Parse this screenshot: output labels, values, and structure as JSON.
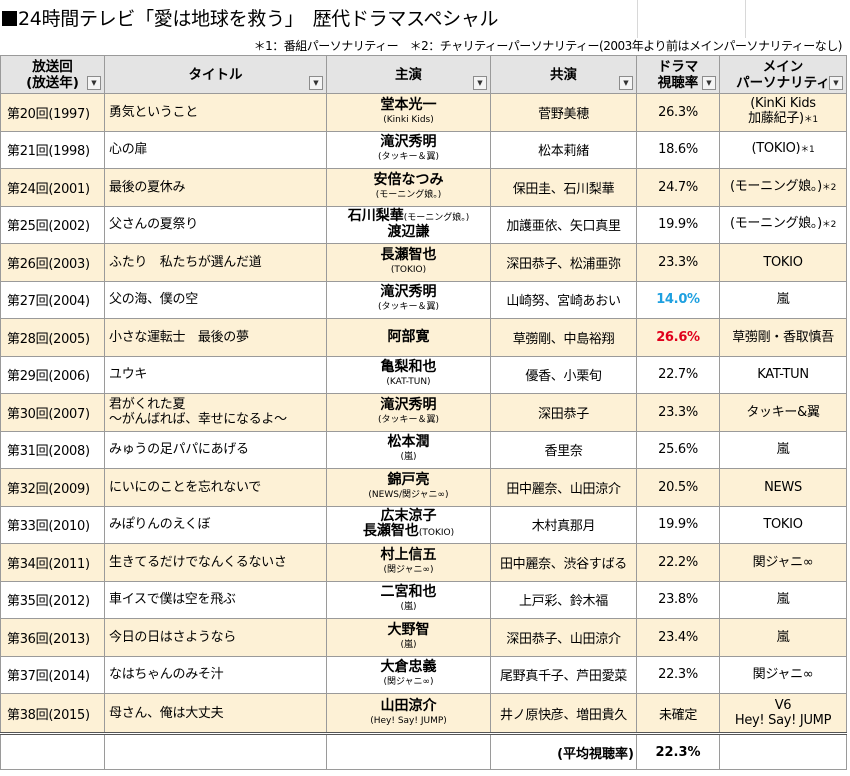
{
  "title": "24時間テレビ「愛は地球を救う」　歴代ドラマスペシャル",
  "note": "＊1：番組パーソナリティー　＊2：チャリティーパーソナリティー(2003年より前はメインパーソナリティーなし)",
  "headers": {
    "episode_l1": "放送回",
    "episode_l2": "(放送年)",
    "title": "タイトル",
    "star": "主演",
    "cast": "共演",
    "rating_l1": "ドラマ",
    "rating_l2": "視聴率",
    "pers_l1": "メイン",
    "pers_l2": "パーソナリティ"
  },
  "filter_glyph": "▼",
  "rows": [
    {
      "ep": "第20回(1997)",
      "title": "勇気ということ",
      "title2": "",
      "star": "堂本光一",
      "star_sub": "(Kinki Kids)",
      "star2": "",
      "star2_sub": "",
      "cast": "菅野美穂",
      "rating": "26.3%",
      "rating_style": "",
      "pers": "(KinKi Kids",
      "pers2": "加藤紀子)",
      "mark": "＊1"
    },
    {
      "ep": "第21回(1998)",
      "title": "心の扉",
      "title2": "",
      "star": "滝沢秀明",
      "star_sub": "(タッキー＆翼)",
      "star2": "",
      "star2_sub": "",
      "cast": "松本莉緒",
      "rating": "18.6%",
      "rating_style": "",
      "pers": "(TOKIO)",
      "pers2": "",
      "mark": "＊1"
    },
    {
      "ep": "第24回(2001)",
      "title": "最後の夏休み",
      "title2": "",
      "star": "安倍なつみ",
      "star_sub": "(モーニング娘。)",
      "star2": "",
      "star2_sub": "",
      "cast": "保田圭、石川梨華",
      "rating": "24.7%",
      "rating_style": "",
      "pers": "(モーニング娘。)",
      "pers2": "",
      "mark": "＊2"
    },
    {
      "ep": "第25回(2002)",
      "title": "父さんの夏祭り",
      "title2": "",
      "star": "石川梨華",
      "star_sub": "(モーニング娘。)",
      "star2": "渡辺謙",
      "star2_sub": "",
      "cast": "加護亜依、矢口真里",
      "rating": "19.9%",
      "rating_style": "",
      "pers": "(モーニング娘。)",
      "pers2": "",
      "mark": "＊2"
    },
    {
      "ep": "第26回(2003)",
      "title": "ふたり　私たちが選んだ道",
      "title2": "",
      "star": "長瀬智也",
      "star_sub": "(TOKIO)",
      "star2": "",
      "star2_sub": "",
      "cast": "深田恭子、松浦亜弥",
      "rating": "23.3%",
      "rating_style": "",
      "pers": "TOKIO",
      "pers2": "",
      "mark": ""
    },
    {
      "ep": "第27回(2004)",
      "title": "父の海、僕の空",
      "title2": "",
      "star": "滝沢秀明",
      "star_sub": "(タッキー＆翼)",
      "star2": "",
      "star2_sub": "",
      "cast": "山崎努、宮崎あおい",
      "rating": "14.0%",
      "rating_style": "blue",
      "pers": "嵐",
      "pers2": "",
      "mark": ""
    },
    {
      "ep": "第28回(2005)",
      "title": "小さな運転士　最後の夢",
      "title2": "",
      "star": "阿部寛",
      "star_sub": "",
      "star2": "",
      "star2_sub": "",
      "cast": "草彅剛、中島裕翔",
      "rating": "26.6%",
      "rating_style": "red",
      "pers": "草彅剛・香取慎吾",
      "pers2": "",
      "mark": ""
    },
    {
      "ep": "第29回(2006)",
      "title": "ユウキ",
      "title2": "",
      "star": "亀梨和也",
      "star_sub": "(KAT-TUN)",
      "star2": "",
      "star2_sub": "",
      "cast": "優香、小栗旬",
      "rating": "22.7%",
      "rating_style": "",
      "pers": "KAT-TUN",
      "pers2": "",
      "mark": ""
    },
    {
      "ep": "第30回(2007)",
      "title": "君がくれた夏",
      "title2": "～がんばれば、幸せになるよ～",
      "star": "滝沢秀明",
      "star_sub": "(タッキー＆翼)",
      "star2": "",
      "star2_sub": "",
      "cast": "深田恭子",
      "rating": "23.3%",
      "rating_style": "",
      "pers": "タッキー&翼",
      "pers2": "",
      "mark": ""
    },
    {
      "ep": "第31回(2008)",
      "title": "みゅうの足パパにあげる",
      "title2": "",
      "star": "松本潤",
      "star_sub": "(嵐)",
      "star2": "",
      "star2_sub": "",
      "cast": "香里奈",
      "rating": "25.6%",
      "rating_style": "",
      "pers": "嵐",
      "pers2": "",
      "mark": ""
    },
    {
      "ep": "第32回(2009)",
      "title": "にいにのことを忘れないで",
      "title2": "",
      "star": "錦戸亮",
      "star_sub": "(NEWS/関ジャニ∞)",
      "star2": "",
      "star2_sub": "",
      "cast": "田中麗奈、山田涼介",
      "rating": "20.5%",
      "rating_style": "",
      "pers": "NEWS",
      "pers2": "",
      "mark": ""
    },
    {
      "ep": "第33回(2010)",
      "title": "みぽりんのえくぼ",
      "title2": "",
      "star": "広末涼子",
      "star_sub": "",
      "star2": "長瀬智也",
      "star2_sub": "(TOKIO)",
      "cast": "木村真那月",
      "rating": "19.9%",
      "rating_style": "",
      "pers": "TOKIO",
      "pers2": "",
      "mark": ""
    },
    {
      "ep": "第34回(2011)",
      "title": "生きてるだけでなんくるないさ",
      "title2": "",
      "star": "村上信五",
      "star_sub": "(関ジャニ∞)",
      "star2": "",
      "star2_sub": "",
      "cast": "田中麗奈、渋谷すばる",
      "rating": "22.2%",
      "rating_style": "",
      "pers": "関ジャニ∞",
      "pers2": "",
      "mark": ""
    },
    {
      "ep": "第35回(2012)",
      "title": "車イスで僕は空を飛ぶ",
      "title2": "",
      "star": "二宮和也",
      "star_sub": "(嵐)",
      "star2": "",
      "star2_sub": "",
      "cast": "上戸彩、鈴木福",
      "rating": "23.8%",
      "rating_style": "",
      "pers": "嵐",
      "pers2": "",
      "mark": ""
    },
    {
      "ep": "第36回(2013)",
      "title": "今日の日はさようなら",
      "title2": "",
      "star": "大野智",
      "star_sub": "(嵐)",
      "star2": "",
      "star2_sub": "",
      "cast": "深田恭子、山田涼介",
      "rating": "23.4%",
      "rating_style": "",
      "pers": "嵐",
      "pers2": "",
      "mark": ""
    },
    {
      "ep": "第37回(2014)",
      "title": "なはちゃんのみそ汁",
      "title2": "",
      "star": "大倉忠義",
      "star_sub": "(関ジャニ∞)",
      "star2": "",
      "star2_sub": "",
      "cast": "尾野真千子、芦田愛菜",
      "rating": "22.3%",
      "rating_style": "",
      "pers": "関ジャニ∞",
      "pers2": "",
      "mark": ""
    },
    {
      "ep": "第38回(2015)",
      "title": "母さん、俺は大丈夫",
      "title2": "",
      "star": "山田涼介",
      "star_sub": "(Hey! Say! JUMP)",
      "star2": "",
      "star2_sub": "",
      "cast": "井ノ原快彦、増田貴久",
      "rating": "未確定",
      "rating_style": "",
      "pers": "V6",
      "pers2": "Hey! Say!  JUMP",
      "mark": ""
    }
  ],
  "footer": {
    "avg_label": "(平均視聴率)",
    "avg_value": "22.3%"
  },
  "colors": {
    "even_row": "#fdf1d6",
    "header_bg": "#e4e4e4",
    "min_rating": "#1ea0e0",
    "max_rating": "#e0001b"
  }
}
